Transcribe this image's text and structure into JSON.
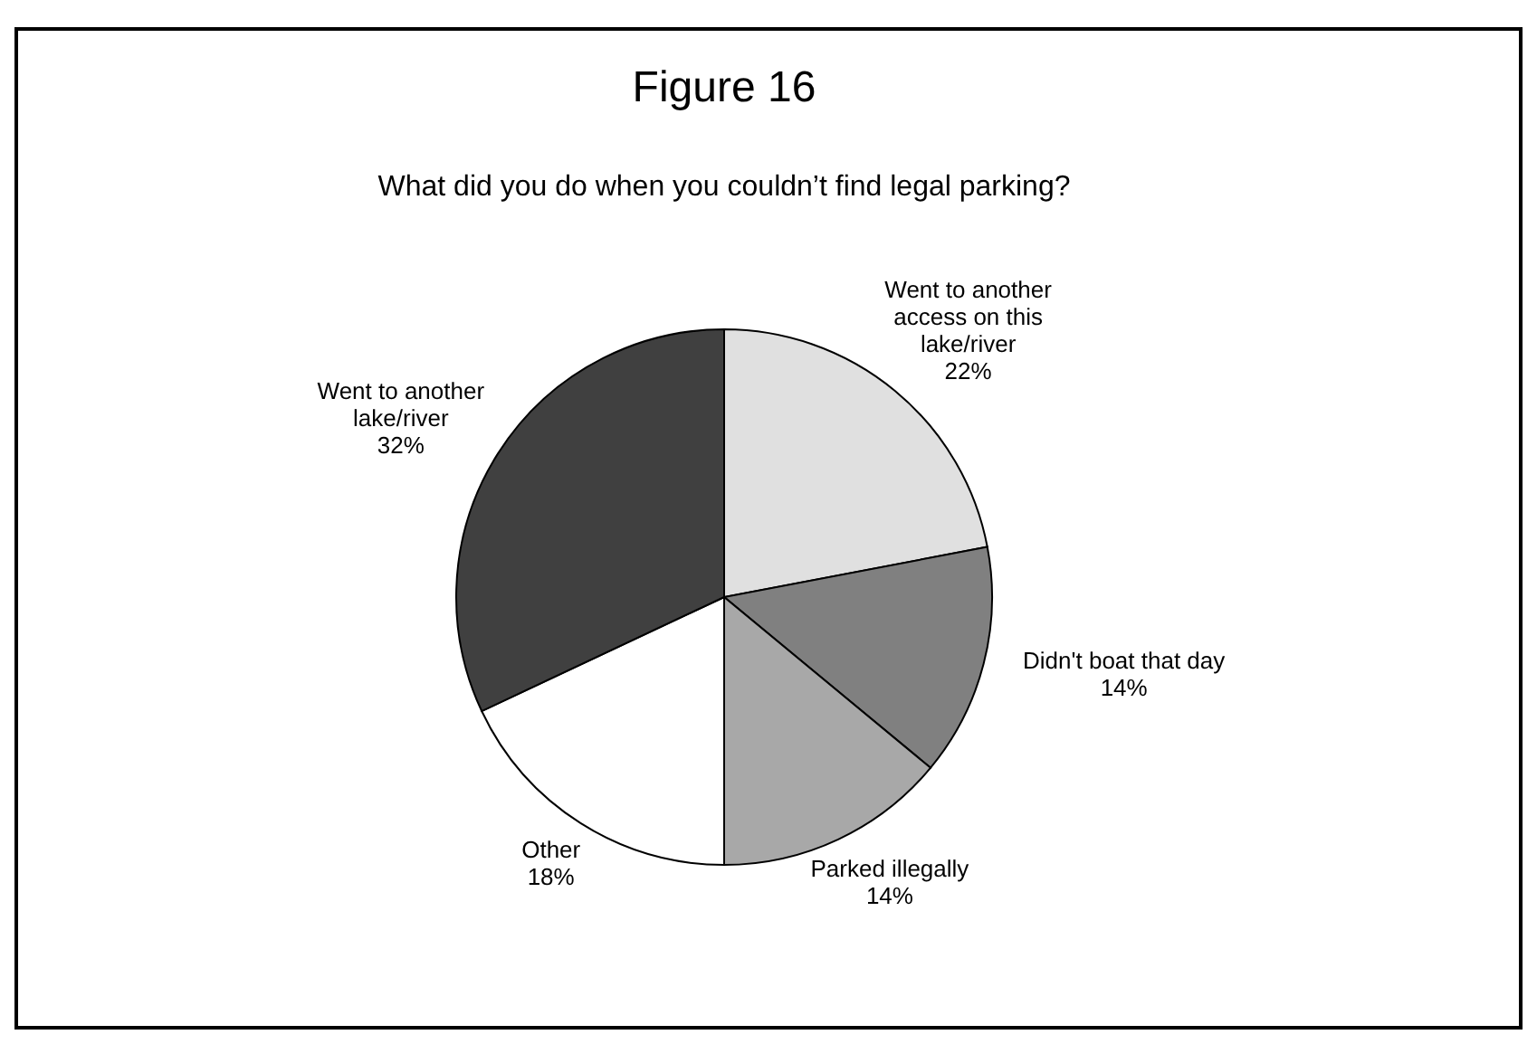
{
  "chart_data": {
    "type": "pie",
    "title": "Figure 16",
    "subtitle": "What did you do when you couldn’t find legal parking?",
    "categories": [
      "Went to another access on this lake/river",
      "Didn't boat that day",
      "Parked illegally",
      "Other",
      "Went to another lake/river"
    ],
    "values": [
      22,
      14,
      14,
      18,
      32
    ],
    "value_labels": [
      "22%",
      "14%",
      "14%",
      "18%",
      "32%"
    ],
    "colors": [
      "#e0e0e0",
      "#808080",
      "#a8a8a8",
      "#ffffff",
      "#404040"
    ]
  }
}
